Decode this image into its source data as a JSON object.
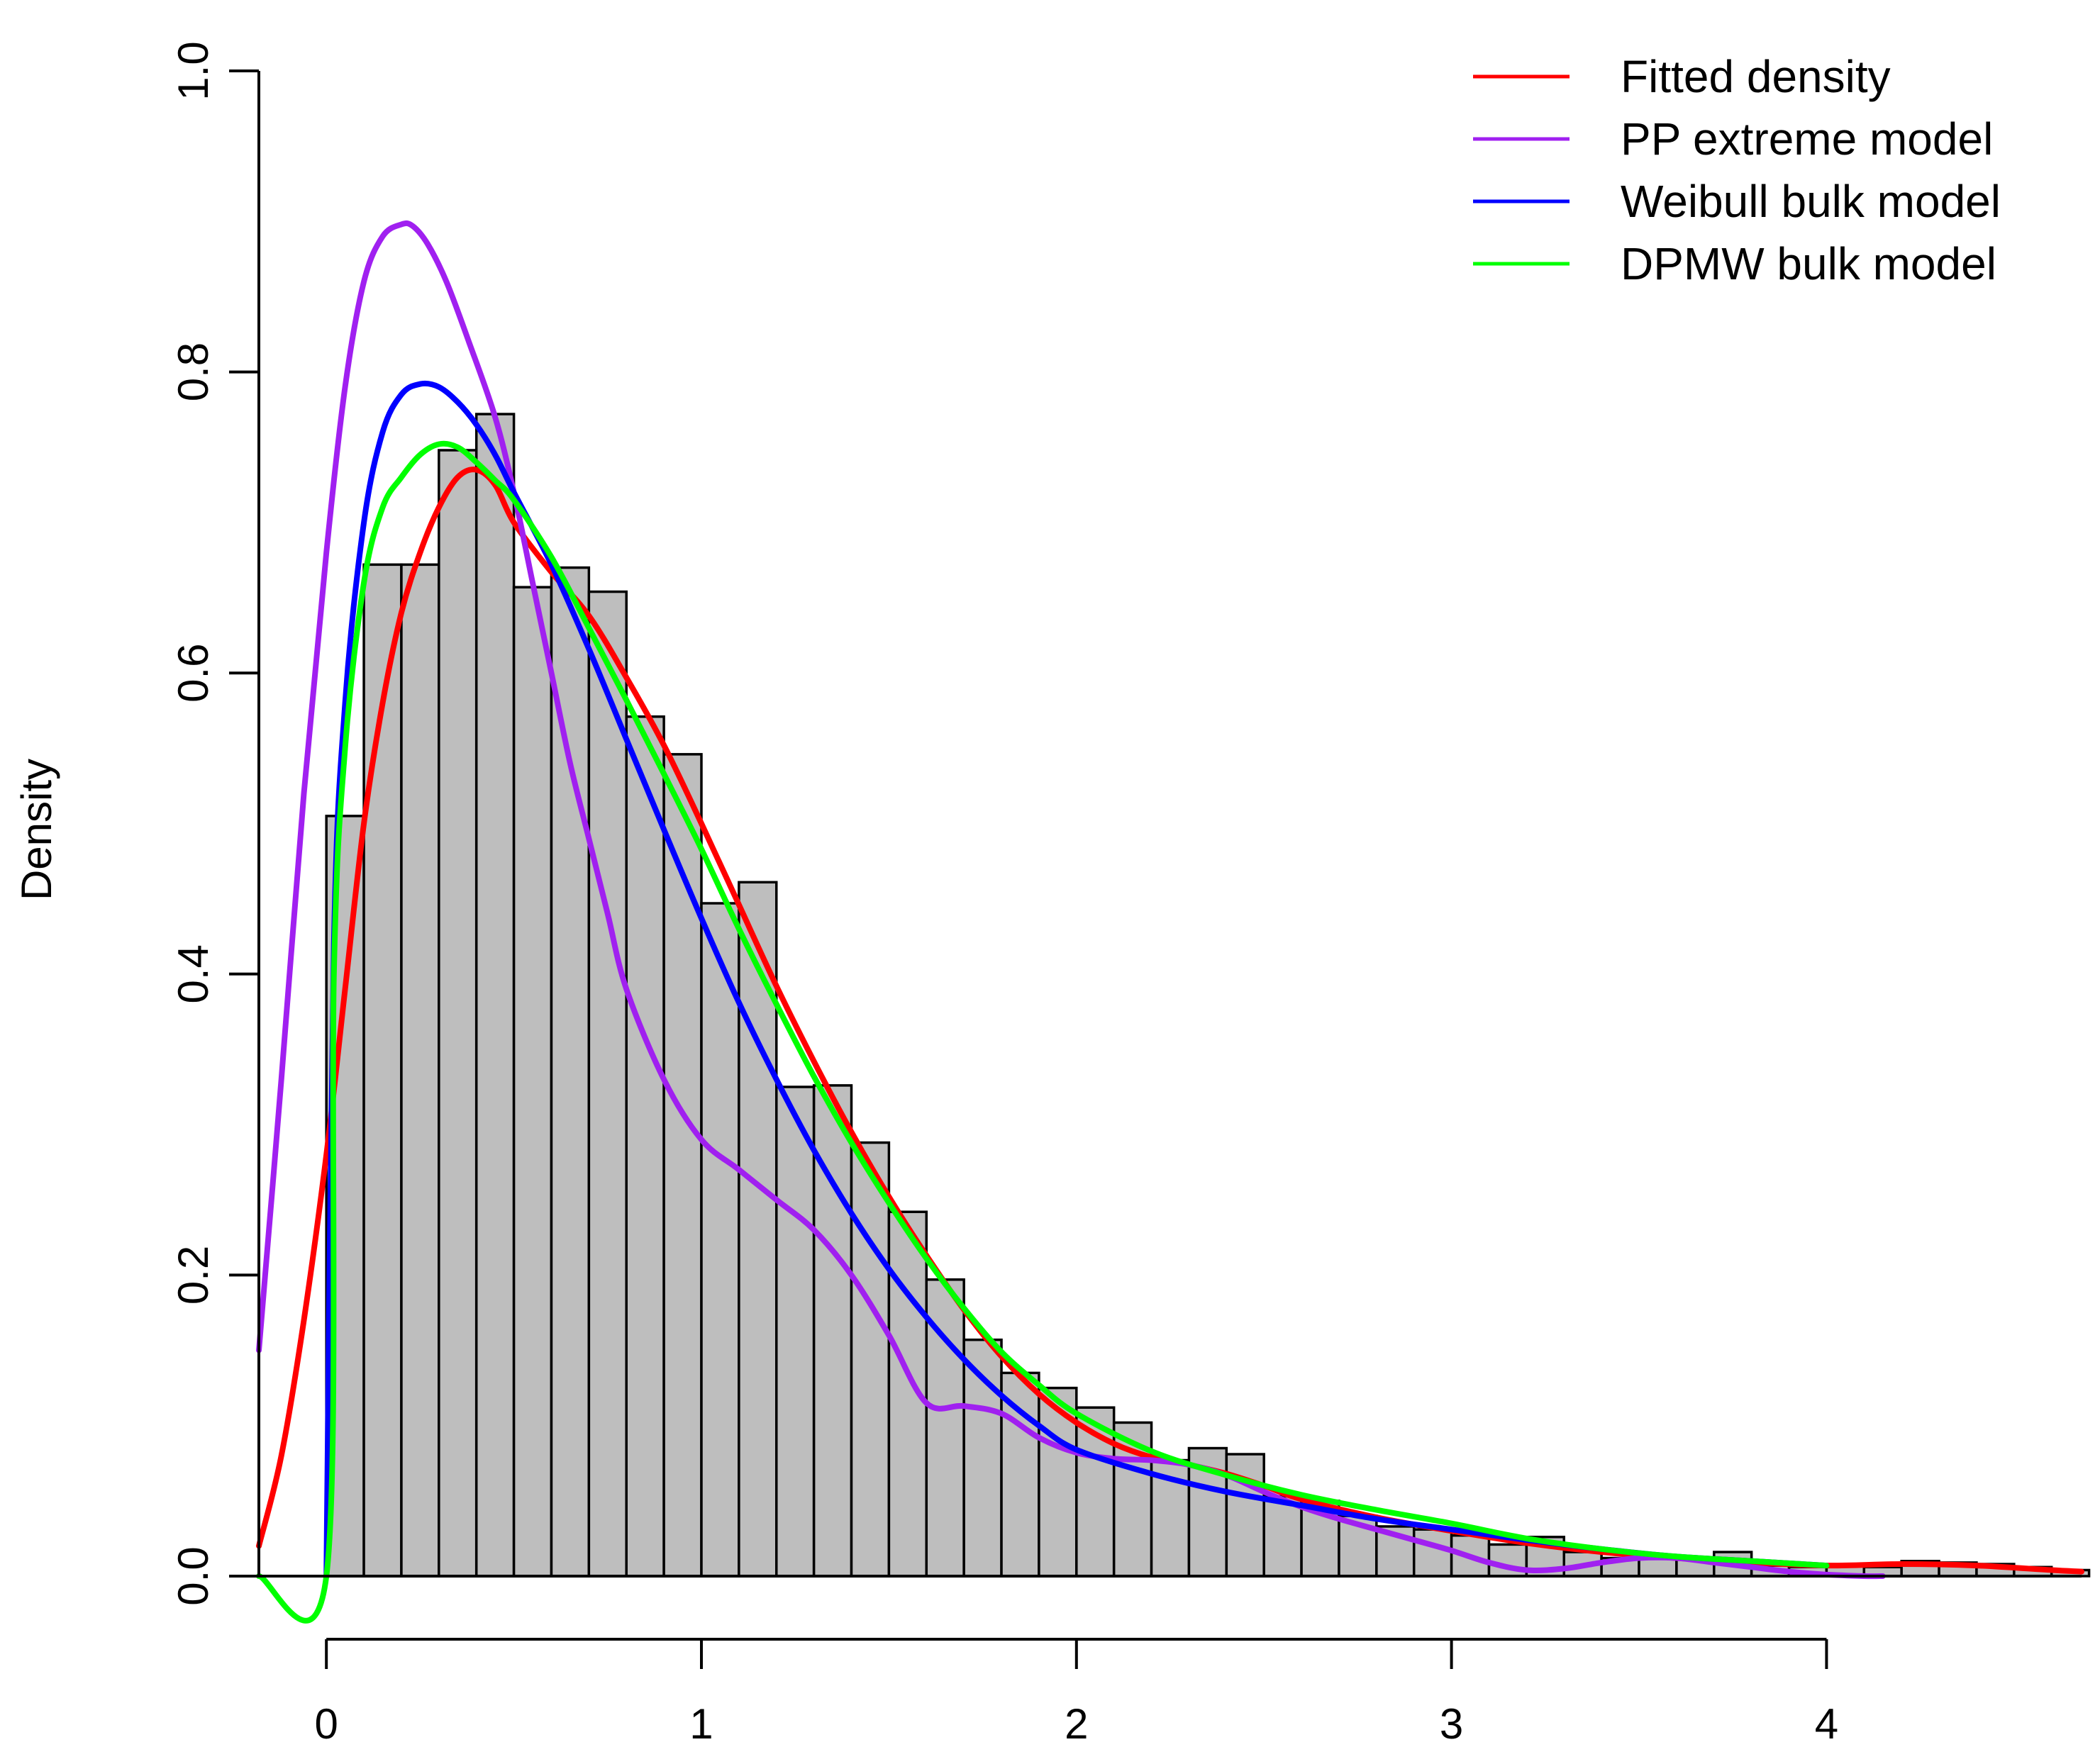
{
  "chart_data": {
    "type": "histogram",
    "title": "",
    "xlabel": "",
    "ylabel": "Density",
    "xlim": [
      -0.18,
      4.68
    ],
    "ylim": [
      0.0,
      1.0
    ],
    "x_ticks": [
      0,
      1,
      2,
      3,
      4
    ],
    "x_tick_labels": [
      "0",
      "1",
      "2",
      "3",
      "4"
    ],
    "y_ticks": [
      0.0,
      0.2,
      0.4,
      0.6,
      0.8,
      1.0
    ],
    "y_tick_labels": [
      "0.0",
      "0.2",
      "0.4",
      "0.6",
      "0.8",
      "1.0"
    ],
    "grid": false,
    "legend_position": "top-right",
    "histogram": {
      "bin_width": 0.1,
      "bin_start": 0.0,
      "fill": "#bebebe",
      "edge": "#000000",
      "densities": [
        0.505,
        0.672,
        0.672,
        0.748,
        0.772,
        0.657,
        0.67,
        0.654,
        0.571,
        0.546,
        0.447,
        0.461,
        0.325,
        0.326,
        0.288,
        0.242,
        0.197,
        0.157,
        0.135,
        0.125,
        0.112,
        0.102,
        0.077,
        0.085,
        0.081,
        0.053,
        0.05,
        0.04,
        0.033,
        0.031,
        0.027,
        0.021,
        0.026,
        0.016,
        0.012,
        0.014,
        0.011,
        0.016,
        0.007,
        0.006,
        0.007,
        0.006,
        0.01,
        0.009,
        0.008,
        0.006,
        0.004
      ]
    },
    "series": [
      {
        "name": "Fitted density",
        "color": "#ff0000",
        "x": [
          -0.18,
          -0.12,
          -0.06,
          0.0,
          0.05,
          0.1,
          0.15,
          0.2,
          0.25,
          0.3,
          0.35,
          0.4,
          0.45,
          0.5,
          0.6,
          0.7,
          0.8,
          0.9,
          1.0,
          1.1,
          1.2,
          1.3,
          1.4,
          1.5,
          1.6,
          1.7,
          1.8,
          1.9,
          2.0,
          2.1,
          2.2,
          2.3,
          2.4,
          2.5,
          2.6,
          2.8,
          3.0,
          3.2,
          3.4,
          3.6,
          3.8,
          4.0,
          4.2,
          4.4,
          4.6,
          4.68
        ],
        "y": [
          0.02,
          0.08,
          0.17,
          0.28,
          0.39,
          0.5,
          0.58,
          0.64,
          0.68,
          0.71,
          0.73,
          0.735,
          0.725,
          0.7,
          0.667,
          0.638,
          0.597,
          0.552,
          0.5,
          0.446,
          0.392,
          0.342,
          0.295,
          0.252,
          0.213,
          0.177,
          0.146,
          0.121,
          0.102,
          0.088,
          0.079,
          0.074,
          0.068,
          0.06,
          0.051,
          0.039,
          0.03,
          0.022,
          0.016,
          0.012,
          0.009,
          0.007,
          0.008,
          0.007,
          0.004,
          0.003
        ]
      },
      {
        "name": "PP extreme model",
        "color": "#a020f0",
        "x": [
          -0.18,
          -0.12,
          -0.06,
          0.0,
          0.05,
          0.1,
          0.15,
          0.2,
          0.23,
          0.27,
          0.32,
          0.38,
          0.45,
          0.5,
          0.55,
          0.6,
          0.65,
          0.7,
          0.75,
          0.8,
          0.9,
          1.0,
          1.1,
          1.2,
          1.3,
          1.4,
          1.5,
          1.6,
          1.7,
          1.8,
          1.9,
          2.0,
          2.1,
          2.2,
          2.3,
          2.4,
          2.5,
          2.6,
          2.7,
          2.8,
          2.9,
          3.0,
          3.1,
          3.2,
          3.3,
          3.4,
          3.5,
          3.6,
          3.7,
          3.8,
          3.9,
          4.0,
          4.1,
          4.15
        ],
        "y": [
          0.15,
          0.33,
          0.52,
          0.68,
          0.79,
          0.86,
          0.89,
          0.898,
          0.897,
          0.885,
          0.86,
          0.82,
          0.77,
          0.72,
          0.66,
          0.6,
          0.54,
          0.49,
          0.44,
          0.39,
          0.33,
          0.29,
          0.27,
          0.25,
          0.23,
          0.2,
          0.16,
          0.115,
          0.113,
          0.108,
          0.092,
          0.082,
          0.078,
          0.077,
          0.074,
          0.067,
          0.056,
          0.046,
          0.038,
          0.031,
          0.024,
          0.017,
          0.009,
          0.004,
          0.005,
          0.009,
          0.012,
          0.012,
          0.009,
          0.006,
          0.003,
          0.001,
          0.0,
          0.0
        ]
      },
      {
        "name": "Weibull bulk model",
        "color": "#0000ff",
        "x": [
          0.0,
          0.02,
          0.05,
          0.1,
          0.15,
          0.2,
          0.25,
          0.3,
          0.35,
          0.4,
          0.45,
          0.5,
          0.6,
          0.7,
          0.8,
          0.9,
          1.0,
          1.1,
          1.2,
          1.3,
          1.4,
          1.5,
          1.6,
          1.7,
          1.8,
          1.9,
          2.0,
          2.2,
          2.4,
          2.6,
          2.8,
          3.0,
          3.2,
          3.4,
          3.6,
          3.8,
          4.0
        ],
        "y": [
          0.0,
          0.42,
          0.58,
          0.7,
          0.76,
          0.785,
          0.792,
          0.79,
          0.78,
          0.765,
          0.745,
          0.72,
          0.672,
          0.616,
          0.556,
          0.496,
          0.437,
          0.381,
          0.33,
          0.283,
          0.241,
          0.204,
          0.172,
          0.144,
          0.12,
          0.1,
          0.084,
          0.068,
          0.056,
          0.047,
          0.038,
          0.031,
          0.024,
          0.018,
          0.013,
          0.01,
          0.007
        ]
      },
      {
        "name": "DPMW bulk model",
        "color": "#00ff00",
        "x": [
          -0.18,
          0.0,
          0.02,
          0.05,
          0.1,
          0.15,
          0.2,
          0.25,
          0.3,
          0.35,
          0.4,
          0.45,
          0.5,
          0.6,
          0.7,
          0.8,
          0.9,
          1.0,
          1.1,
          1.2,
          1.3,
          1.4,
          1.5,
          1.6,
          1.7,
          1.8,
          1.9,
          2.0,
          2.2,
          2.4,
          2.6,
          2.8,
          3.0,
          3.2,
          3.4,
          3.6,
          3.8,
          4.0
        ],
        "y": [
          0.0,
          0.0,
          0.4,
          0.55,
          0.66,
          0.71,
          0.73,
          0.745,
          0.752,
          0.75,
          0.74,
          0.728,
          0.715,
          0.677,
          0.63,
          0.582,
          0.533,
          0.483,
          0.43,
          0.38,
          0.332,
          0.288,
          0.248,
          0.211,
          0.178,
          0.149,
          0.127,
          0.108,
          0.083,
          0.067,
          0.054,
          0.044,
          0.035,
          0.025,
          0.018,
          0.013,
          0.01,
          0.007
        ]
      }
    ]
  }
}
